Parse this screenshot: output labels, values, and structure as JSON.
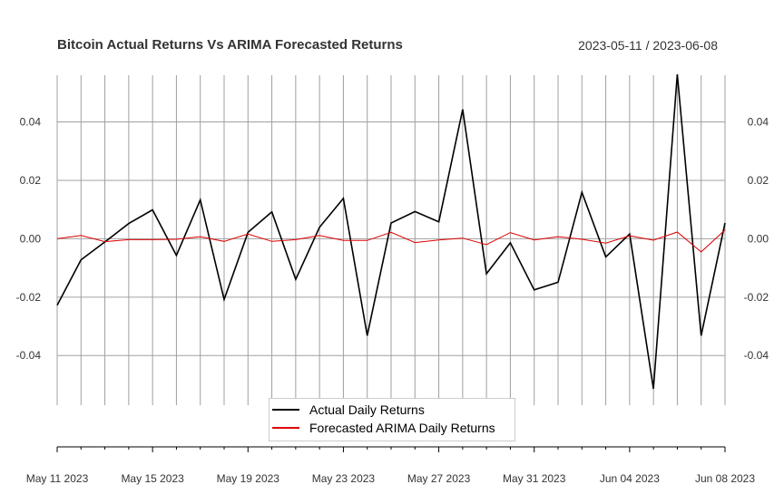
{
  "chart_data": {
    "type": "line",
    "title": "Bitcoin Actual Returns Vs ARIMA Forecasted Returns",
    "date_range": "2023-05-11 / 2023-06-08",
    "x": [
      "2023-05-11",
      "2023-05-12",
      "2023-05-13",
      "2023-05-14",
      "2023-05-15",
      "2023-05-16",
      "2023-05-17",
      "2023-05-18",
      "2023-05-19",
      "2023-05-20",
      "2023-05-21",
      "2023-05-22",
      "2023-05-23",
      "2023-05-24",
      "2023-05-25",
      "2023-05-26",
      "2023-05-27",
      "2023-05-28",
      "2023-05-29",
      "2023-05-30",
      "2023-05-31",
      "2023-06-01",
      "2023-06-02",
      "2023-06-03",
      "2023-06-04",
      "2023-06-05",
      "2023-06-06",
      "2023-06-07",
      "2023-06-08"
    ],
    "x_tick_labels": [
      "May 11 2023",
      "May 15 2023",
      "May 19 2023",
      "May 23 2023",
      "May 27 2023",
      "May 31 2023",
      "Jun 04 2023",
      "Jun 08 2023"
    ],
    "y_tick_labels": [
      "0.04",
      "0.02",
      "0.00",
      "-0.02",
      "-0.04"
    ],
    "y_ticks": [
      0.04,
      0.02,
      0.0,
      -0.02,
      -0.04
    ],
    "ylim": [
      -0.057,
      0.056
    ],
    "grid": true,
    "legend_position": "bottom-center",
    "series": [
      {
        "name": "Actual Daily Returns",
        "color": "#000000",
        "values": [
          -0.0228,
          -0.0072,
          -0.0011,
          0.0052,
          0.0099,
          -0.0057,
          0.0133,
          -0.0208,
          0.0022,
          0.0092,
          -0.0139,
          0.0039,
          0.0138,
          -0.0332,
          0.0054,
          0.0093,
          0.0058,
          0.0443,
          -0.012,
          -0.0014,
          -0.0175,
          -0.0149,
          0.0159,
          -0.0062,
          0.0016,
          -0.0514,
          0.0563,
          -0.0332,
          0.0054
        ]
      },
      {
        "name": "Forecasted ARIMA Daily Returns",
        "color": "#dd0000",
        "values": [
          0.0,
          0.0011,
          -0.001,
          -0.0003,
          -0.0003,
          -0.0002,
          0.0007,
          -0.0009,
          0.0016,
          -0.0009,
          -0.0003,
          0.0011,
          -0.0006,
          -0.0006,
          0.0022,
          -0.0013,
          -0.0004,
          0.0002,
          -0.002,
          0.0021,
          -0.0004,
          0.0007,
          -0.0002,
          -0.0015,
          0.001,
          -0.0005,
          0.0023,
          -0.0045,
          0.003
        ]
      }
    ]
  }
}
